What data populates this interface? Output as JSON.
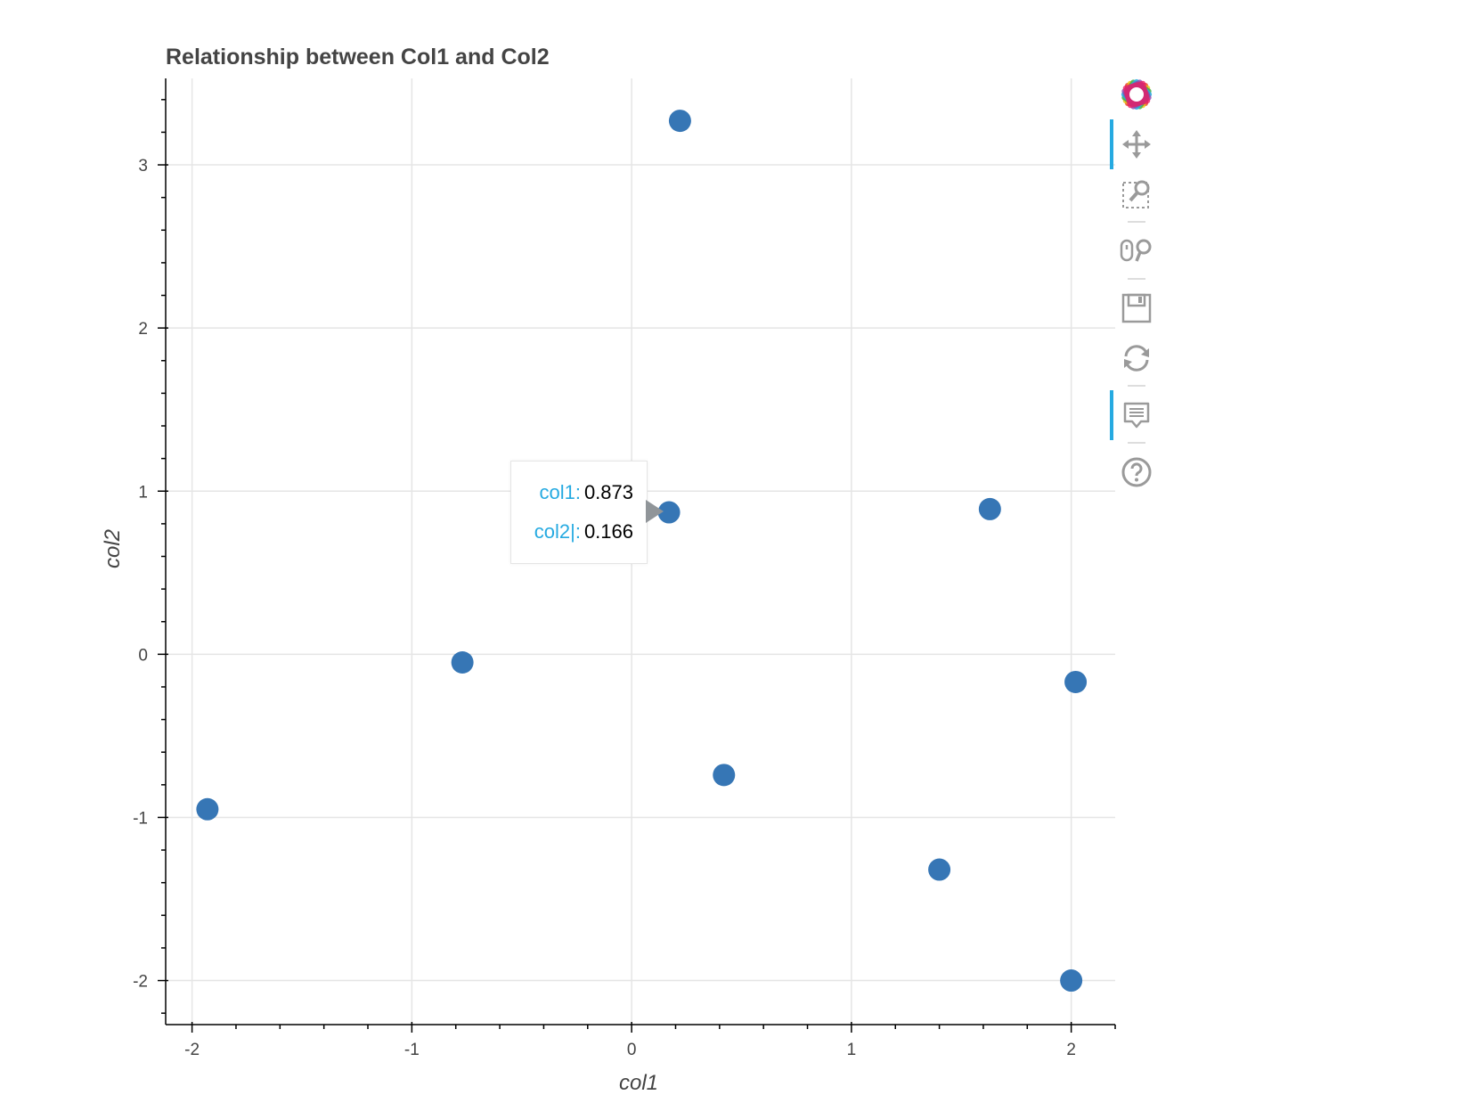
{
  "chart_data": {
    "type": "scatter",
    "title": "Relationship between Col1 and Col2",
    "xlabel": "col1",
    "ylabel": "col2",
    "xlim": [
      -2.12,
      2.2
    ],
    "ylim": [
      -2.27,
      3.53
    ],
    "xticks": [
      -2,
      -1,
      0,
      1,
      2
    ],
    "xtick_labels": [
      "-2",
      "-1",
      "0",
      "1",
      "2"
    ],
    "yticks": [
      -2,
      -1,
      0,
      1,
      2,
      3
    ],
    "ytick_labels": [
      "-2",
      "-1",
      "0",
      "1",
      "2",
      "3"
    ],
    "grid": true,
    "marker_color": "#3676b5",
    "points": [
      {
        "x": 0.22,
        "y": 3.27
      },
      {
        "x": 0.17,
        "y": 0.87
      },
      {
        "x": 1.63,
        "y": 0.89
      },
      {
        "x": -0.77,
        "y": -0.05
      },
      {
        "x": 2.02,
        "y": -0.17
      },
      {
        "x": 0.42,
        "y": -0.74
      },
      {
        "x": -1.93,
        "y": -0.95
      },
      {
        "x": 1.4,
        "y": -1.32
      },
      {
        "x": 2.0,
        "y": -2.0
      }
    ]
  },
  "tooltip": {
    "rows": [
      {
        "key": "col1",
        "sep": ":",
        "value": "0.873"
      },
      {
        "key": "col2",
        "sep": "|:",
        "value": "0.166"
      }
    ]
  },
  "toolbar": {
    "items": [
      {
        "icon": "bokeh-logo-icon",
        "active": false
      },
      {
        "icon": "pan-icon",
        "active": true
      },
      {
        "icon": "box-zoom-icon",
        "active": false
      },
      {
        "icon": "wheel-zoom-icon",
        "active": false
      },
      {
        "icon": "save-icon",
        "active": false
      },
      {
        "icon": "reset-icon",
        "active": false
      },
      {
        "icon": "hover-icon",
        "active": true
      },
      {
        "icon": "help-icon",
        "active": false
      }
    ]
  }
}
